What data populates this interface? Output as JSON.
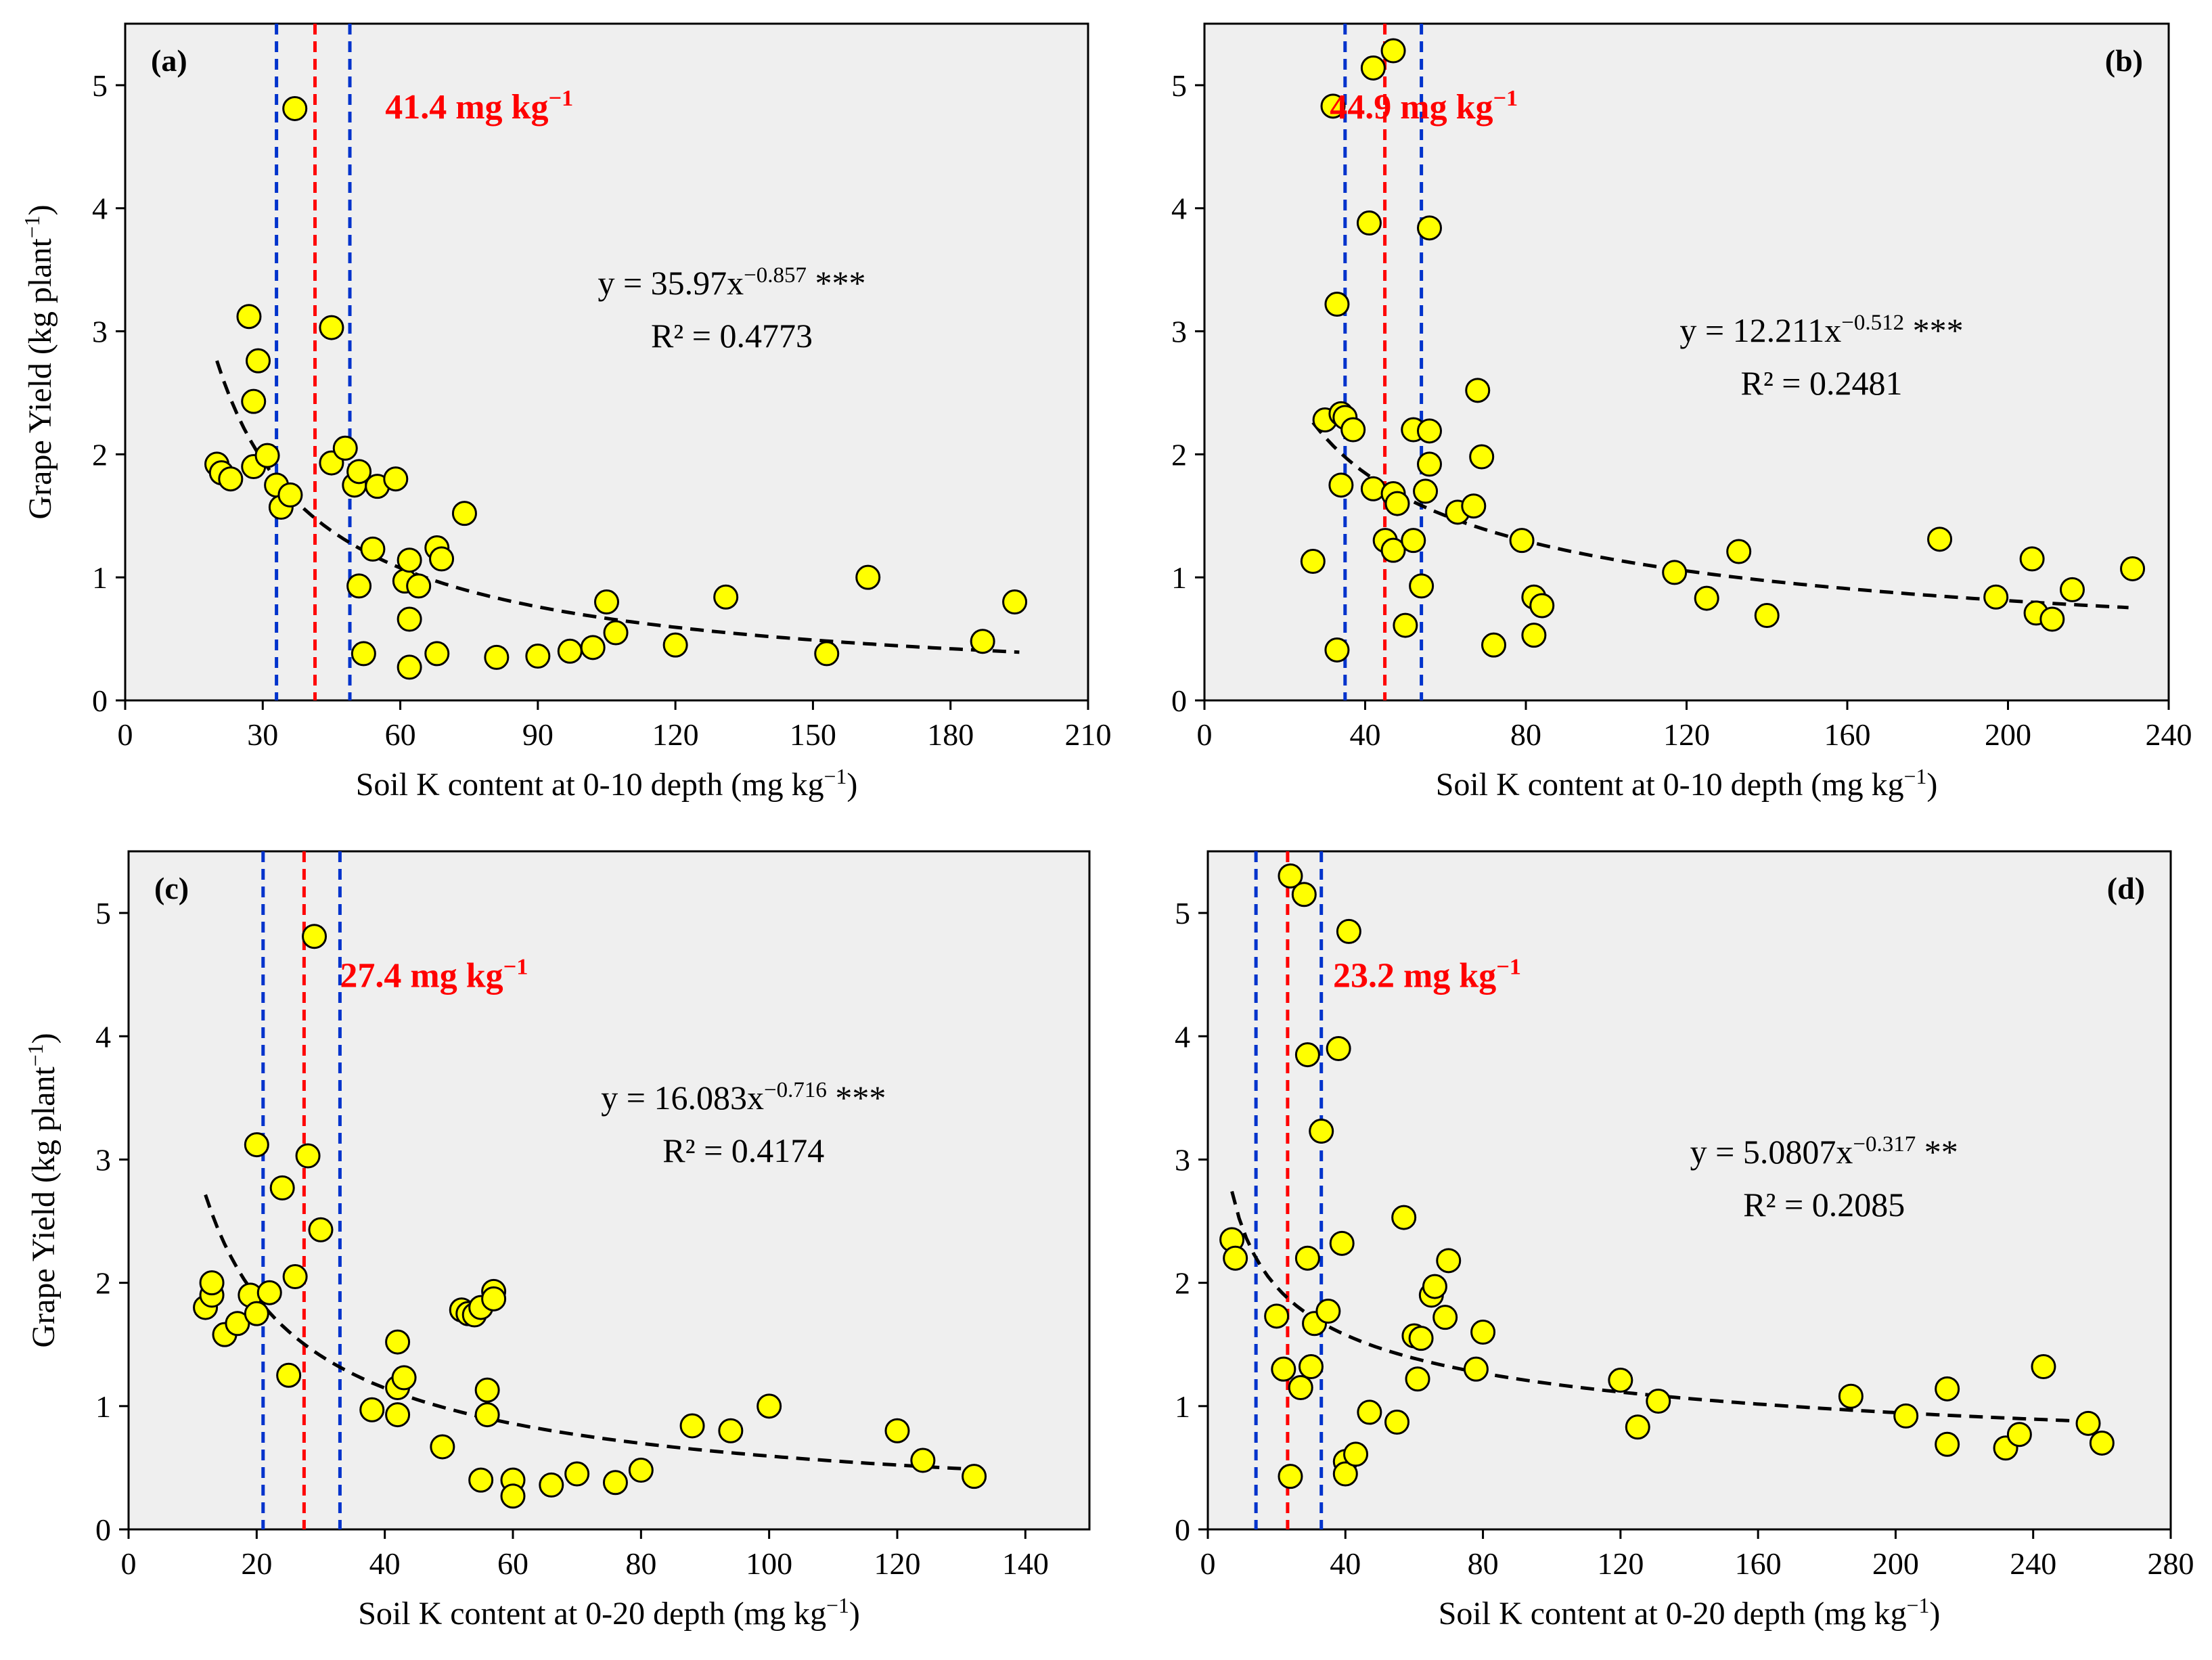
{
  "colors": {
    "plot_background": "#efefef",
    "marker_fill": "#ffff00",
    "marker_edge": "#000000",
    "threshold_red": "#ff0000",
    "interval_blue": "#0033cc",
    "fit_line": "#000000"
  },
  "chart_data": [
    {
      "type": "scatter",
      "panel_label": "(a)",
      "xlabel": "Soil K content at 0-10 depth (mg kg",
      "xlabel_sup": "−1",
      "xlabel_end": ")",
      "ylabel": "Grape Yield (kg plant",
      "ylabel_sup": "−1",
      "ylabel_end": ")",
      "xlim": [
        0,
        210
      ],
      "ylim": [
        0,
        5.5
      ],
      "xticks": [
        0,
        30,
        60,
        90,
        120,
        150,
        180,
        210
      ],
      "yticks": [
        0,
        1,
        2,
        3,
        4,
        5
      ],
      "threshold": 41.4,
      "threshold_label": "41.4 mg  kg",
      "threshold_label_sup": "−1",
      "interval": [
        33,
        49
      ],
      "fit": {
        "a": 35.97,
        "b": -0.857,
        "x_range": [
          20,
          195
        ]
      },
      "equation": {
        "prefix": "y = 35.97x",
        "exponent": "−0.857",
        "signif": " ***",
        "r2": "R² = 0.4773"
      },
      "points": [
        [
          20,
          1.92
        ],
        [
          21,
          1.85
        ],
        [
          23,
          1.8
        ],
        [
          27,
          3.12
        ],
        [
          28,
          2.43
        ],
        [
          29,
          2.76
        ],
        [
          28,
          1.9
        ],
        [
          31,
          1.99
        ],
        [
          33,
          1.75
        ],
        [
          34,
          1.57
        ],
        [
          36,
          1.67
        ],
        [
          37,
          4.81
        ],
        [
          45,
          3.03
        ],
        [
          45,
          1.93
        ],
        [
          48,
          2.05
        ],
        [
          50,
          1.75
        ],
        [
          51,
          1.86
        ],
        [
          51,
          0.93
        ],
        [
          52,
          0.38
        ],
        [
          54,
          1.23
        ],
        [
          55,
          1.74
        ],
        [
          59,
          1.8
        ],
        [
          61,
          0.97
        ],
        [
          62,
          1.14
        ],
        [
          62,
          0.66
        ],
        [
          62,
          0.27
        ],
        [
          64,
          0.93
        ],
        [
          68,
          1.24
        ],
        [
          68,
          0.38
        ],
        [
          69,
          1.15
        ],
        [
          74,
          1.52
        ],
        [
          81,
          0.35
        ],
        [
          90,
          0.36
        ],
        [
          97,
          0.4
        ],
        [
          102,
          0.43
        ],
        [
          105,
          0.8
        ],
        [
          107,
          0.55
        ],
        [
          120,
          0.45
        ],
        [
          131,
          0.84
        ],
        [
          153,
          0.38
        ],
        [
          162,
          1.0
        ],
        [
          187,
          0.48
        ],
        [
          194,
          0.8
        ]
      ]
    },
    {
      "type": "scatter",
      "panel_label": "(b)",
      "xlabel": "Soil K content at 0-10 depth (mg kg",
      "xlabel_sup": "−1",
      "xlabel_end": ")",
      "xlim": [
        0,
        240
      ],
      "ylim": [
        0,
        5.5
      ],
      "xticks": [
        0,
        40,
        80,
        120,
        160,
        200,
        240
      ],
      "yticks": [
        0,
        1,
        2,
        3,
        4,
        5
      ],
      "threshold": 44.9,
      "threshold_label": "44.9 mg  kg",
      "threshold_label_sup": "−1",
      "interval": [
        35,
        54
      ],
      "fit": {
        "a": 12.211,
        "b": -0.512,
        "x_range": [
          27,
          230
        ]
      },
      "equation": {
        "prefix": "y = 12.211x",
        "exponent": "−0.512",
        "signif": "  ***",
        "r2": "R² = 0.2481"
      },
      "points": [
        [
          27,
          1.13
        ],
        [
          30,
          2.28
        ],
        [
          32,
          4.83
        ],
        [
          33,
          3.22
        ],
        [
          33,
          0.41
        ],
        [
          34,
          2.33
        ],
        [
          34,
          1.75
        ],
        [
          35,
          2.3
        ],
        [
          37,
          2.2
        ],
        [
          41,
          3.88
        ],
        [
          42,
          5.14
        ],
        [
          42,
          1.72
        ],
        [
          45,
          1.3
        ],
        [
          47,
          5.28
        ],
        [
          47,
          1.68
        ],
        [
          47,
          1.22
        ],
        [
          48,
          1.6
        ],
        [
          50,
          0.61
        ],
        [
          52,
          2.2
        ],
        [
          52,
          1.3
        ],
        [
          54,
          0.93
        ],
        [
          55,
          1.7
        ],
        [
          56,
          3.84
        ],
        [
          56,
          2.19
        ],
        [
          56,
          1.92
        ],
        [
          63,
          1.53
        ],
        [
          67,
          1.58
        ],
        [
          68,
          2.52
        ],
        [
          69,
          1.98
        ],
        [
          72,
          0.45
        ],
        [
          79,
          1.3
        ],
        [
          82,
          0.84
        ],
        [
          82,
          0.53
        ],
        [
          84,
          0.77
        ],
        [
          117,
          1.04
        ],
        [
          125,
          0.83
        ],
        [
          133,
          1.21
        ],
        [
          140,
          0.69
        ],
        [
          183,
          1.31
        ],
        [
          197,
          0.84
        ],
        [
          206,
          1.15
        ],
        [
          207,
          0.71
        ],
        [
          211,
          0.66
        ],
        [
          216,
          0.9
        ],
        [
          231,
          1.07
        ]
      ]
    },
    {
      "type": "scatter",
      "panel_label": "(c)",
      "xlabel": "Soil K content at 0-20 depth (mg kg",
      "xlabel_sup": "−1",
      "xlabel_end": ")",
      "ylabel": "Grape Yield (kg plant",
      "ylabel_sup": "−1",
      "ylabel_end": ")",
      "xlim": [
        0,
        150
      ],
      "ylim": [
        0,
        5.5
      ],
      "xticks": [
        0,
        20,
        40,
        60,
        80,
        100,
        120,
        140
      ],
      "yticks": [
        0,
        1,
        2,
        3,
        4,
        5
      ],
      "threshold": 27.4,
      "threshold_label": "27.4 mg  kg",
      "threshold_label_sup": "−1",
      "interval": [
        21,
        33
      ],
      "fit": {
        "a": 16.083,
        "b": -0.716,
        "x_range": [
          12,
          132
        ]
      },
      "equation": {
        "prefix": "y = 16.083x",
        "exponent": "−0.716",
        "signif": " ***",
        "r2": "R² = 0.4174"
      },
      "points": [
        [
          12,
          1.8
        ],
        [
          13,
          1.9
        ],
        [
          13,
          2.0
        ],
        [
          15,
          1.58
        ],
        [
          17,
          1.67
        ],
        [
          19,
          1.9
        ],
        [
          20,
          1.75
        ],
        [
          20,
          3.12
        ],
        [
          22,
          1.92
        ],
        [
          24,
          2.77
        ],
        [
          25,
          1.25
        ],
        [
          26,
          2.05
        ],
        [
          28,
          3.03
        ],
        [
          29,
          4.81
        ],
        [
          30,
          2.43
        ],
        [
          38,
          0.97
        ],
        [
          42,
          0.93
        ],
        [
          42,
          1.15
        ],
        [
          42,
          1.52
        ],
        [
          43,
          1.23
        ],
        [
          49,
          0.67
        ],
        [
          52,
          1.78
        ],
        [
          53,
          1.75
        ],
        [
          54,
          1.74
        ],
        [
          55,
          1.8
        ],
        [
          55,
          0.4
        ],
        [
          56,
          1.13
        ],
        [
          56,
          0.93
        ],
        [
          57,
          1.93
        ],
        [
          57,
          1.87
        ],
        [
          60,
          0.4
        ],
        [
          60,
          0.27
        ],
        [
          66,
          0.36
        ],
        [
          70,
          0.45
        ],
        [
          76,
          0.38
        ],
        [
          80,
          0.48
        ],
        [
          88,
          0.84
        ],
        [
          94,
          0.8
        ],
        [
          100,
          1.0
        ],
        [
          120,
          0.8
        ],
        [
          124,
          0.56
        ],
        [
          132,
          0.43
        ]
      ]
    },
    {
      "type": "scatter",
      "panel_label": "(d)",
      "xlabel": "Soil K content at 0-20 depth (mg kg",
      "xlabel_sup": "−1",
      "xlabel_end": ")",
      "xlim": [
        0,
        280
      ],
      "ylim": [
        0,
        5.5
      ],
      "xticks": [
        0,
        40,
        80,
        120,
        160,
        200,
        240,
        280
      ],
      "yticks": [
        0,
        1,
        2,
        3,
        4,
        5
      ],
      "threshold": 23.2,
      "threshold_label": "23.2 mg  kg",
      "threshold_label_sup": "−1",
      "interval": [
        14,
        33
      ],
      "fit": {
        "a": 5.0807,
        "b": -0.317,
        "x_range": [
          7,
          258
        ]
      },
      "equation": {
        "prefix": "y = 5.0807x",
        "exponent": "−0.317",
        "signif": " **",
        "r2": "R² = 0.2085"
      },
      "points": [
        [
          7,
          2.35
        ],
        [
          8,
          2.2
        ],
        [
          20,
          1.73
        ],
        [
          22,
          1.3
        ],
        [
          24,
          5.3
        ],
        [
          24,
          0.43
        ],
        [
          27,
          1.15
        ],
        [
          28,
          5.15
        ],
        [
          29,
          3.85
        ],
        [
          29,
          2.2
        ],
        [
          30,
          1.32
        ],
        [
          31,
          1.67
        ],
        [
          33,
          3.23
        ],
        [
          35,
          1.77
        ],
        [
          38,
          3.9
        ],
        [
          39,
          2.32
        ],
        [
          40,
          0.55
        ],
        [
          40,
          0.45
        ],
        [
          41,
          4.85
        ],
        [
          43,
          0.61
        ],
        [
          47,
          0.95
        ],
        [
          55,
          0.87
        ],
        [
          57,
          2.53
        ],
        [
          60,
          1.57
        ],
        [
          61,
          1.22
        ],
        [
          62,
          1.55
        ],
        [
          65,
          1.9
        ],
        [
          66,
          1.97
        ],
        [
          69,
          1.72
        ],
        [
          70,
          2.18
        ],
        [
          78,
          1.3
        ],
        [
          80,
          1.6
        ],
        [
          120,
          1.21
        ],
        [
          125,
          0.83
        ],
        [
          131,
          1.04
        ],
        [
          187,
          1.08
        ],
        [
          203,
          0.92
        ],
        [
          215,
          1.14
        ],
        [
          215,
          0.69
        ],
        [
          232,
          0.66
        ],
        [
          236,
          0.77
        ],
        [
          243,
          1.32
        ],
        [
          256,
          0.86
        ],
        [
          260,
          0.7
        ]
      ]
    }
  ]
}
